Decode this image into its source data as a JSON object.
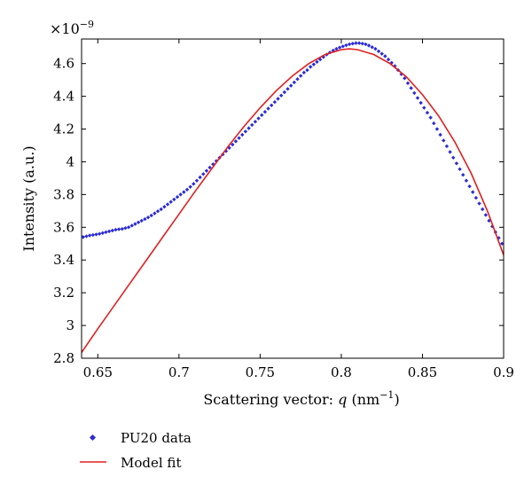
{
  "chart_data": {
    "type": "scatter",
    "title": "",
    "xlabel": {
      "prefix": "Scattering vector: ",
      "var": "q",
      "unit_open": " (nm",
      "unit_exp": "−1",
      "unit_close": ")"
    },
    "ylabel": "Intensity (a.u.)",
    "y_multiplier": {
      "base": "×10",
      "exp": "−9"
    },
    "xlim": [
      0.64,
      0.9
    ],
    "ylim": [
      2.8,
      4.75
    ],
    "x_ticks": [
      0.65,
      0.7,
      0.75,
      0.8,
      0.85,
      0.9
    ],
    "x_tick_labels": [
      "0.65",
      "0.7",
      "0.75",
      "0.8",
      "0.85",
      "0.9"
    ],
    "y_ticks": [
      2.8,
      3.0,
      3.2,
      3.4,
      3.6,
      3.8,
      4.0,
      4.2,
      4.4,
      4.6
    ],
    "y_tick_labels": [
      "2.8",
      "3",
      "3.2",
      "3.4",
      "3.6",
      "3.8",
      "4",
      "4.2",
      "4.4",
      "4.6"
    ],
    "grid": false,
    "legend_position": "below",
    "series": [
      {
        "name": "PU20 data",
        "kind": "points",
        "color": "#2b2bd6",
        "points": [
          [
            0.641,
            3.54
          ],
          [
            0.643,
            3.545
          ],
          [
            0.645,
            3.55
          ],
          [
            0.647,
            3.553
          ],
          [
            0.649,
            3.556
          ],
          [
            0.651,
            3.56
          ],
          [
            0.653,
            3.565
          ],
          [
            0.655,
            3.57
          ],
          [
            0.657,
            3.575
          ],
          [
            0.659,
            3.58
          ],
          [
            0.661,
            3.585
          ],
          [
            0.663,
            3.588
          ],
          [
            0.665,
            3.59
          ],
          [
            0.667,
            3.595
          ],
          [
            0.669,
            3.6
          ],
          [
            0.671,
            3.61
          ],
          [
            0.673,
            3.62
          ],
          [
            0.675,
            3.63
          ],
          [
            0.677,
            3.64
          ],
          [
            0.679,
            3.65
          ],
          [
            0.681,
            3.66
          ],
          [
            0.683,
            3.672
          ],
          [
            0.685,
            3.685
          ],
          [
            0.687,
            3.698
          ],
          [
            0.689,
            3.71
          ],
          [
            0.691,
            3.725
          ],
          [
            0.693,
            3.74
          ],
          [
            0.695,
            3.755
          ],
          [
            0.697,
            3.77
          ],
          [
            0.699,
            3.785
          ],
          [
            0.701,
            3.8
          ],
          [
            0.703,
            3.815
          ],
          [
            0.705,
            3.83
          ],
          [
            0.707,
            3.847
          ],
          [
            0.709,
            3.865
          ],
          [
            0.711,
            3.885
          ],
          [
            0.713,
            3.905
          ],
          [
            0.715,
            3.925
          ],
          [
            0.717,
            3.945
          ],
          [
            0.719,
            3.965
          ],
          [
            0.721,
            3.985
          ],
          [
            0.723,
            4.005
          ],
          [
            0.725,
            4.025
          ],
          [
            0.727,
            4.045
          ],
          [
            0.729,
            4.065
          ],
          [
            0.731,
            4.085
          ],
          [
            0.733,
            4.105
          ],
          [
            0.735,
            4.125
          ],
          [
            0.737,
            4.145
          ],
          [
            0.739,
            4.165
          ],
          [
            0.741,
            4.185
          ],
          [
            0.743,
            4.205
          ],
          [
            0.745,
            4.225
          ],
          [
            0.747,
            4.245
          ],
          [
            0.749,
            4.265
          ],
          [
            0.751,
            4.285
          ],
          [
            0.753,
            4.305
          ],
          [
            0.755,
            4.325
          ],
          [
            0.757,
            4.345
          ],
          [
            0.759,
            4.365
          ],
          [
            0.761,
            4.385
          ],
          [
            0.763,
            4.405
          ],
          [
            0.765,
            4.425
          ],
          [
            0.767,
            4.445
          ],
          [
            0.769,
            4.465
          ],
          [
            0.771,
            4.485
          ],
          [
            0.773,
            4.505
          ],
          [
            0.775,
            4.525
          ],
          [
            0.777,
            4.545
          ],
          [
            0.779,
            4.56
          ],
          [
            0.781,
            4.58
          ],
          [
            0.783,
            4.595
          ],
          [
            0.785,
            4.61
          ],
          [
            0.787,
            4.625
          ],
          [
            0.789,
            4.64
          ],
          [
            0.791,
            4.655
          ],
          [
            0.793,
            4.668
          ],
          [
            0.795,
            4.68
          ],
          [
            0.797,
            4.69
          ],
          [
            0.799,
            4.698
          ],
          [
            0.801,
            4.705
          ],
          [
            0.803,
            4.712
          ],
          [
            0.805,
            4.718
          ],
          [
            0.807,
            4.722
          ],
          [
            0.809,
            4.725
          ],
          [
            0.811,
            4.725
          ],
          [
            0.813,
            4.722
          ],
          [
            0.815,
            4.718
          ],
          [
            0.817,
            4.71
          ],
          [
            0.819,
            4.7
          ],
          [
            0.821,
            4.69
          ],
          [
            0.823,
            4.675
          ],
          [
            0.825,
            4.66
          ],
          [
            0.827,
            4.645
          ],
          [
            0.829,
            4.625
          ],
          [
            0.831,
            4.605
          ],
          [
            0.833,
            4.585
          ],
          [
            0.835,
            4.56
          ],
          [
            0.837,
            4.535
          ],
          [
            0.839,
            4.51
          ],
          [
            0.841,
            4.48
          ],
          [
            0.843,
            4.45
          ],
          [
            0.845,
            4.42
          ],
          [
            0.847,
            4.39
          ],
          [
            0.849,
            4.36
          ],
          [
            0.851,
            4.33
          ],
          [
            0.853,
            4.3
          ],
          [
            0.855,
            4.27
          ],
          [
            0.857,
            4.235
          ],
          [
            0.859,
            4.2
          ],
          [
            0.861,
            4.165
          ],
          [
            0.863,
            4.13
          ],
          [
            0.865,
            4.095
          ],
          [
            0.867,
            4.06
          ],
          [
            0.869,
            4.025
          ],
          [
            0.871,
            3.99
          ],
          [
            0.873,
            3.955
          ],
          [
            0.875,
            3.92
          ],
          [
            0.877,
            3.885
          ],
          [
            0.879,
            3.85
          ],
          [
            0.881,
            3.815
          ],
          [
            0.883,
            3.78
          ],
          [
            0.885,
            3.745
          ],
          [
            0.887,
            3.71
          ],
          [
            0.889,
            3.675
          ],
          [
            0.891,
            3.64
          ],
          [
            0.893,
            3.605
          ],
          [
            0.895,
            3.57
          ],
          [
            0.897,
            3.535
          ],
          [
            0.899,
            3.5
          ]
        ]
      },
      {
        "name": "Model fit",
        "kind": "line",
        "color": "#e02020",
        "points": [
          [
            0.64,
            2.835
          ],
          [
            0.65,
            2.98
          ],
          [
            0.66,
            3.12
          ],
          [
            0.67,
            3.26
          ],
          [
            0.68,
            3.4
          ],
          [
            0.69,
            3.54
          ],
          [
            0.7,
            3.68
          ],
          [
            0.71,
            3.82
          ],
          [
            0.72,
            3.955
          ],
          [
            0.73,
            4.09
          ],
          [
            0.74,
            4.215
          ],
          [
            0.75,
            4.33
          ],
          [
            0.76,
            4.435
          ],
          [
            0.77,
            4.525
          ],
          [
            0.78,
            4.6
          ],
          [
            0.79,
            4.655
          ],
          [
            0.8,
            4.685
          ],
          [
            0.805,
            4.69
          ],
          [
            0.81,
            4.685
          ],
          [
            0.82,
            4.655
          ],
          [
            0.83,
            4.6
          ],
          [
            0.84,
            4.52
          ],
          [
            0.85,
            4.41
          ],
          [
            0.86,
            4.28
          ],
          [
            0.87,
            4.12
          ],
          [
            0.88,
            3.93
          ],
          [
            0.89,
            3.7
          ],
          [
            0.9,
            3.43
          ]
        ]
      }
    ]
  }
}
